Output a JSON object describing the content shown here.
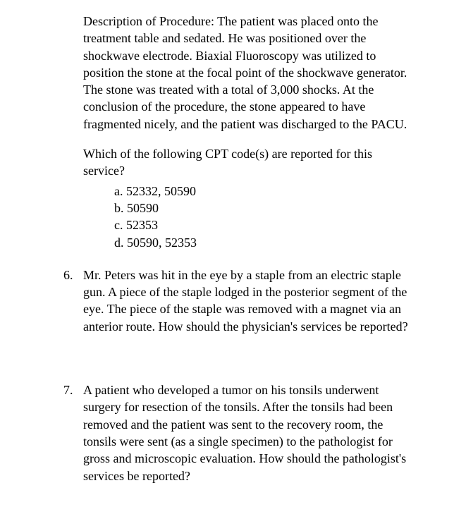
{
  "procedure_description": "Description of Procedure:  The patient was placed onto the treatment table and sedated.  He was positioned over the shockwave electrode.  Biaxial Fluoroscopy was utilized to position the stone at the focal point of the shockwave generator.  The stone was treated with a total of 3,000 shocks.  At the conclusion of the procedure, the stone appeared to have fragmented nicely, and the patient was discharged to the PACU.",
  "cpt_question": {
    "stem": "Which of the following CPT code(s) are reported for this service?",
    "options": {
      "a": "a. 52332, 50590",
      "b": "b. 50590",
      "c": "c. 52353",
      "d": "d. 50590, 52353"
    }
  },
  "q6": {
    "number": "6.",
    "text": "Mr. Peters was hit in the eye by a staple from an electric staple gun.  A piece of the staple lodged in the posterior segment of the eye.  The piece of the staple was removed with a magnet via an anterior route.  How should the physician's services be reported?"
  },
  "q7": {
    "number": "7.",
    "text": "A patient who developed a tumor on his tonsils underwent surgery for resection of the tonsils.  After the tonsils had been removed and the patient was sent to the recovery room, the tonsils were sent (as a single specimen) to the pathologist for gross and microscopic evaluation.  How should the pathologist's services be reported?"
  }
}
